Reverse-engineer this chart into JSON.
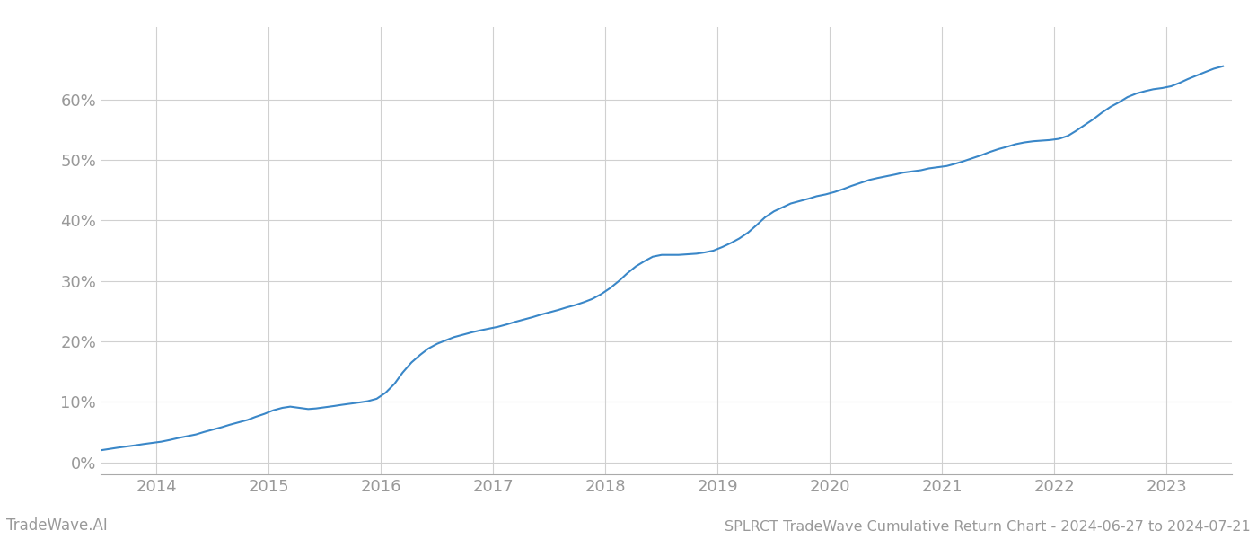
{
  "title": "SPLRCT TradeWave Cumulative Return Chart - 2024-06-27 to 2024-07-21",
  "watermark": "TradeWave.AI",
  "line_color": "#3a87c8",
  "background_color": "#ffffff",
  "grid_color": "#d0d0d0",
  "x_values": [
    2013.51,
    2013.58,
    2013.65,
    2013.73,
    2013.81,
    2013.88,
    2013.96,
    2014.04,
    2014.12,
    2014.19,
    2014.27,
    2014.35,
    2014.42,
    2014.5,
    2014.58,
    2014.65,
    2014.73,
    2014.81,
    2014.88,
    2014.96,
    2015.04,
    2015.12,
    2015.19,
    2015.27,
    2015.35,
    2015.42,
    2015.5,
    2015.58,
    2015.65,
    2015.73,
    2015.81,
    2015.88,
    2015.96,
    2016.04,
    2016.12,
    2016.19,
    2016.27,
    2016.35,
    2016.42,
    2016.5,
    2016.58,
    2016.65,
    2016.73,
    2016.81,
    2016.88,
    2016.96,
    2017.04,
    2017.12,
    2017.19,
    2017.27,
    2017.35,
    2017.42,
    2017.5,
    2017.58,
    2017.65,
    2017.73,
    2017.81,
    2017.88,
    2017.96,
    2018.04,
    2018.12,
    2018.19,
    2018.27,
    2018.35,
    2018.42,
    2018.5,
    2018.58,
    2018.65,
    2018.73,
    2018.81,
    2018.88,
    2018.96,
    2019.04,
    2019.12,
    2019.19,
    2019.27,
    2019.35,
    2019.42,
    2019.5,
    2019.58,
    2019.65,
    2019.73,
    2019.81,
    2019.88,
    2019.96,
    2020.04,
    2020.12,
    2020.19,
    2020.27,
    2020.35,
    2020.42,
    2020.5,
    2020.58,
    2020.65,
    2020.73,
    2020.81,
    2020.88,
    2020.96,
    2021.04,
    2021.12,
    2021.19,
    2021.27,
    2021.35,
    2021.42,
    2021.5,
    2021.58,
    2021.65,
    2021.73,
    2021.81,
    2021.88,
    2021.96,
    2022.04,
    2022.12,
    2022.19,
    2022.27,
    2022.35,
    2022.42,
    2022.5,
    2022.58,
    2022.65,
    2022.73,
    2022.81,
    2022.88,
    2022.96,
    2023.04,
    2023.12,
    2023.19,
    2023.27,
    2023.35,
    2023.42,
    2023.5
  ],
  "y_values": [
    0.02,
    0.022,
    0.024,
    0.026,
    0.028,
    0.03,
    0.032,
    0.034,
    0.037,
    0.04,
    0.043,
    0.046,
    0.05,
    0.054,
    0.058,
    0.062,
    0.066,
    0.07,
    0.075,
    0.08,
    0.086,
    0.09,
    0.092,
    0.09,
    0.088,
    0.089,
    0.091,
    0.093,
    0.095,
    0.097,
    0.099,
    0.101,
    0.105,
    0.115,
    0.13,
    0.148,
    0.165,
    0.178,
    0.188,
    0.196,
    0.202,
    0.207,
    0.211,
    0.215,
    0.218,
    0.221,
    0.224,
    0.228,
    0.232,
    0.236,
    0.24,
    0.244,
    0.248,
    0.252,
    0.256,
    0.26,
    0.265,
    0.27,
    0.278,
    0.288,
    0.3,
    0.312,
    0.324,
    0.333,
    0.34,
    0.343,
    0.343,
    0.343,
    0.344,
    0.345,
    0.347,
    0.35,
    0.356,
    0.363,
    0.37,
    0.38,
    0.393,
    0.405,
    0.415,
    0.422,
    0.428,
    0.432,
    0.436,
    0.44,
    0.443,
    0.447,
    0.452,
    0.457,
    0.462,
    0.467,
    0.47,
    0.473,
    0.476,
    0.479,
    0.481,
    0.483,
    0.486,
    0.488,
    0.49,
    0.494,
    0.498,
    0.503,
    0.508,
    0.513,
    0.518,
    0.522,
    0.526,
    0.529,
    0.531,
    0.532,
    0.533,
    0.535,
    0.54,
    0.548,
    0.558,
    0.568,
    0.578,
    0.588,
    0.596,
    0.604,
    0.61,
    0.614,
    0.617,
    0.619,
    0.622,
    0.628,
    0.634,
    0.64,
    0.646,
    0.651,
    0.655
  ],
  "xlim": [
    2013.5,
    2023.58
  ],
  "ylim": [
    -0.02,
    0.72
  ],
  "xticks": [
    2014,
    2015,
    2016,
    2017,
    2018,
    2019,
    2020,
    2021,
    2022,
    2023
  ],
  "yticks": [
    0.0,
    0.1,
    0.2,
    0.3,
    0.4,
    0.5,
    0.6
  ],
  "line_width": 1.5,
  "tick_color": "#999999",
  "tick_fontsize": 13,
  "title_fontsize": 11.5,
  "watermark_fontsize": 12
}
